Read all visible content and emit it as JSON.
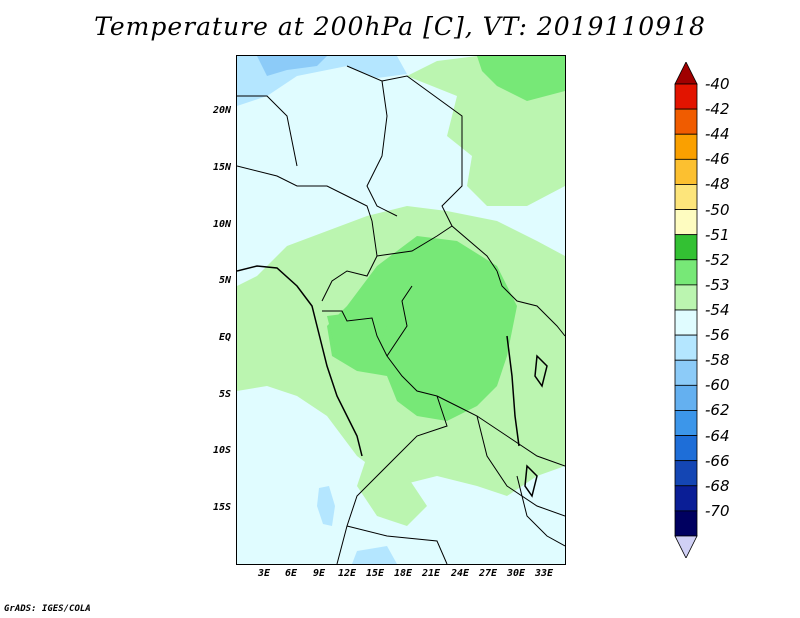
{
  "title": "Temperature at 200hPa [C], VT: 2019110918",
  "credit": "GrADS: IGES/COLA",
  "lat_labels": [
    "20N",
    "15N",
    "10N",
    "5N",
    "EQ",
    "5S",
    "10S",
    "15S"
  ],
  "lon_labels": [
    "3E",
    "6E",
    "9E",
    "12E",
    "15E",
    "18E",
    "21E",
    "24E",
    "27E",
    "30E",
    "33E"
  ],
  "colorbar": {
    "levels": [
      "-40",
      "-42",
      "-44",
      "-46",
      "-48",
      "-50",
      "-51",
      "-52",
      "-53",
      "-54",
      "-56",
      "-58",
      "-60",
      "-62",
      "-64",
      "-66",
      "-68",
      "-70"
    ],
    "colors": [
      "#a00000",
      "#e21400",
      "#f05c00",
      "#faa000",
      "#fcc030",
      "#fde57b",
      "#fefcc0",
      "#33c133",
      "#77e877",
      "#bbf5b0",
      "#e0fcff",
      "#b4e6ff",
      "#8ccbf8",
      "#64b0f0",
      "#3c96ea",
      "#1e6ed8",
      "#1446b4",
      "#0a1e96",
      "#000060",
      "#d0d0f5"
    ]
  }
}
